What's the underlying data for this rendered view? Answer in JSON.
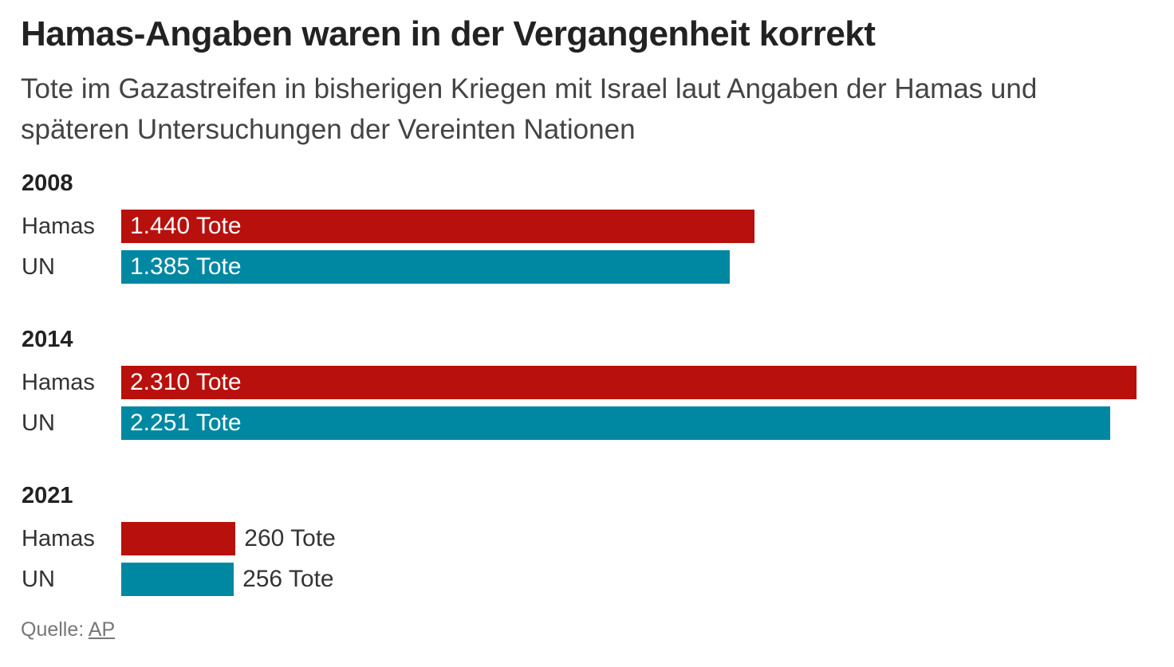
{
  "chart_data": {
    "type": "bar",
    "orientation": "horizontal",
    "title": "Hamas-Angaben waren in der Vergangenheit korrekt",
    "subtitle": "Tote im Gazastreifen in bisherigen Kriegen mit Israel laut Angaben der Hamas und späteren Untersuchungen der Vereinten Nationen",
    "categories": [
      "2008",
      "2014",
      "2021"
    ],
    "series": [
      {
        "name": "Hamas",
        "color": "#b8100c",
        "values": [
          1440,
          2310,
          260
        ],
        "labels": [
          "1.440 Tote",
          "2.310 Tote",
          "260 Tote"
        ]
      },
      {
        "name": "UN",
        "color": "#0088a2",
        "values": [
          1385,
          2251,
          256
        ],
        "labels": [
          "1.385 Tote",
          "2.251 Tote",
          "256 Tote"
        ]
      }
    ],
    "xlim": [
      0,
      2310
    ],
    "grid": false,
    "legend": "none"
  },
  "source": {
    "label": "Quelle:",
    "link": "AP"
  }
}
